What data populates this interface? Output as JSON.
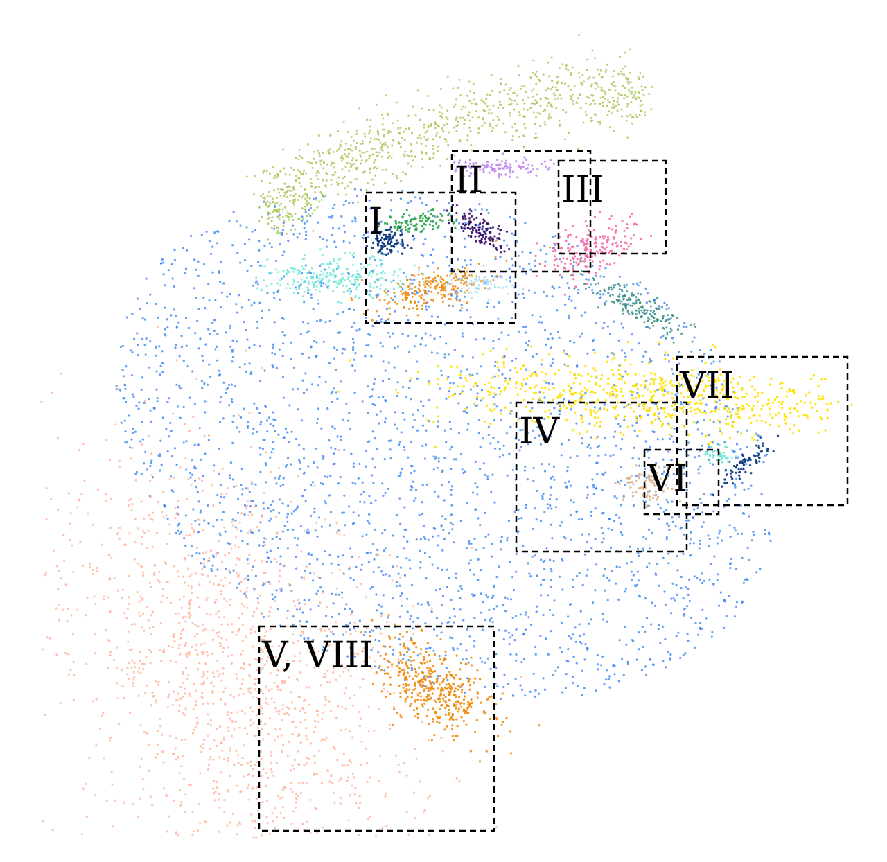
{
  "chart_data": {
    "type": "scatter",
    "title": "",
    "xlabel": "",
    "ylabel": "",
    "axes_visible": false,
    "grid": false,
    "legend": "none",
    "colors": {
      "blue": "#2f7ef3",
      "salmon": "#ffb39a",
      "olive": "#a9c659",
      "yellow": "#ffe100",
      "orange": "#f08a0b",
      "aqua": "#6fe8d5",
      "navy": "#0f3b7c",
      "green": "#2fa84a",
      "lavender": "#c08af0",
      "indigo": "#3a136f",
      "pink": "#f56aa8",
      "teal": "#2f8b82",
      "skyblue": "#a8def0",
      "tan": "#d9b08c",
      "purple": "#8a5cc9",
      "steel": "#6f87b8"
    },
    "clusters": [
      {
        "color": "blue",
        "x": 0.0,
        "y": 0.0
      },
      {
        "color": "salmon",
        "x": -0.55,
        "y": -0.6
      },
      {
        "color": "olive",
        "x": 0.0,
        "y": 0.82
      },
      {
        "color": "yellow",
        "x": 0.52,
        "y": 0.12
      },
      {
        "color": "orange",
        "x": -0.02,
        "y": -0.63
      },
      {
        "color": "orange",
        "x": -0.03,
        "y": 0.4
      },
      {
        "color": "aqua",
        "x": -0.28,
        "y": 0.43
      },
      {
        "color": "navy",
        "x": -0.14,
        "y": 0.52
      },
      {
        "color": "green",
        "x": -0.06,
        "y": 0.57
      },
      {
        "color": "lavender",
        "x": 0.14,
        "y": 0.71
      },
      {
        "color": "indigo",
        "x": 0.09,
        "y": 0.55
      },
      {
        "color": "pink",
        "x": 0.37,
        "y": 0.5
      },
      {
        "color": "teal",
        "x": 0.5,
        "y": 0.35
      },
      {
        "color": "skyblue",
        "x": 0.1,
        "y": 0.41
      },
      {
        "color": "tan",
        "x": 0.53,
        "y": -0.1
      },
      {
        "color": "navy",
        "x": 0.78,
        "y": -0.05
      },
      {
        "color": "aqua",
        "x": 0.71,
        "y": -0.03
      }
    ],
    "annotations": [
      {
        "label": "I"
      },
      {
        "label": "II"
      },
      {
        "label": "III"
      },
      {
        "label": "IV"
      },
      {
        "label": "V, VIII"
      },
      {
        "label": "VI"
      },
      {
        "label": "VII"
      }
    ]
  }
}
